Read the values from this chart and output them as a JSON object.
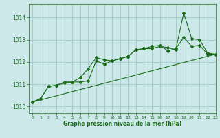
{
  "title": "",
  "xlabel": "Graphe pression niveau de la mer (hPa)",
  "background_color": "#cce8e8",
  "grid_color": "#aacece",
  "line_color": "#1a6b1a",
  "xlim": [
    -0.5,
    23
  ],
  "ylim": [
    1009.7,
    1014.6
  ],
  "xticks": [
    0,
    1,
    2,
    3,
    4,
    5,
    6,
    7,
    8,
    9,
    10,
    11,
    12,
    13,
    14,
    15,
    16,
    17,
    18,
    19,
    20,
    21,
    22,
    23
  ],
  "yticks": [
    1010,
    1011,
    1012,
    1013,
    1014
  ],
  "line1_x": [
    0,
    1,
    2,
    3,
    4,
    5,
    6,
    7,
    8,
    9,
    10,
    11,
    12,
    13,
    14,
    15,
    16,
    17,
    18,
    19,
    20,
    21,
    22,
    23
  ],
  "line1_y": [
    1010.2,
    1010.35,
    1010.9,
    1010.95,
    1011.05,
    1011.1,
    1011.1,
    1011.15,
    1012.05,
    1011.9,
    1012.05,
    1012.15,
    1012.25,
    1012.55,
    1012.6,
    1012.6,
    1012.7,
    1012.65,
    1012.55,
    1014.2,
    1013.05,
    1013.0,
    1012.4,
    1012.35
  ],
  "line2_x": [
    0,
    1,
    2,
    3,
    4,
    5,
    6,
    7,
    8,
    9,
    10,
    11,
    12,
    13,
    14,
    15,
    16,
    17,
    18,
    19,
    20,
    21,
    22,
    23
  ],
  "line2_y": [
    1010.2,
    1010.35,
    1010.9,
    1010.95,
    1011.1,
    1011.1,
    1011.3,
    1011.7,
    1012.2,
    1012.1,
    1012.05,
    1012.15,
    1012.25,
    1012.55,
    1012.6,
    1012.7,
    1012.75,
    1012.5,
    1012.6,
    1013.1,
    1012.7,
    1012.75,
    1012.35,
    1012.35
  ],
  "line3_x": [
    0,
    23
  ],
  "line3_y": [
    1010.2,
    1012.35
  ]
}
